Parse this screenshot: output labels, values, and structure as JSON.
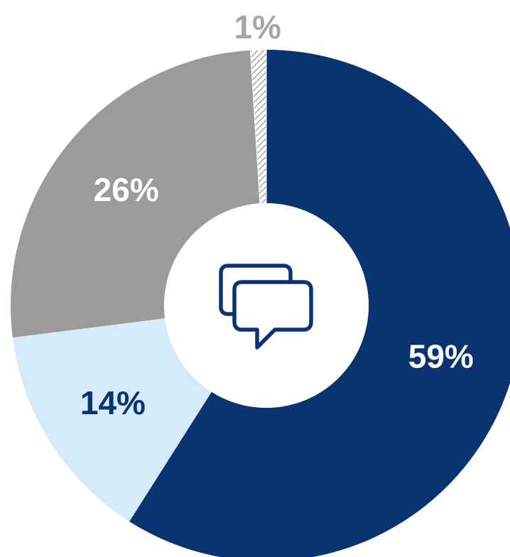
{
  "chart_data": {
    "type": "pie",
    "donut": true,
    "slices": [
      {
        "value": 59,
        "label": "59%",
        "color": "#0a3470",
        "label_color": "#ffffff",
        "pattern": "solid"
      },
      {
        "value": 14,
        "label": "14%",
        "color": "#d6ebfa",
        "label_color": "#0a3470",
        "pattern": "solid"
      },
      {
        "value": 26,
        "label": "26%",
        "color": "#9b9b9b",
        "label_color": "#ffffff",
        "pattern": "solid"
      },
      {
        "value": 1,
        "label": "1%",
        "color": "#a6a6a6",
        "label_color": "#a6a6a6",
        "pattern": "hatched"
      }
    ],
    "center_icon": "speech-bubbles-icon",
    "legend": "none"
  }
}
